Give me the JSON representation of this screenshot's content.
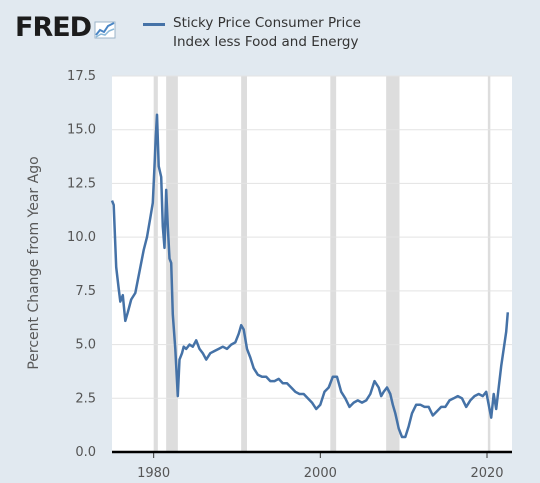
{
  "logo": {
    "text": "FRED",
    "icon": "chart-line-icon"
  },
  "legend": {
    "label_line1": "Sticky Price Consumer Price",
    "label_line2": "Index less Food and Energy",
    "color": "#4572a7"
  },
  "chart_data": {
    "type": "line",
    "title": "",
    "xlabel": "",
    "ylabel": "Percent Change from Year Ago",
    "xlim": [
      1975,
      2023
    ],
    "ylim": [
      0,
      17.5
    ],
    "yticks": [
      "0.0",
      "2.5",
      "5.0",
      "7.5",
      "10.0",
      "12.5",
      "15.0",
      "17.5"
    ],
    "xticks": [
      "1980",
      "2000",
      "2020"
    ],
    "grid": "horizontal",
    "recessions": [
      [
        1980.0,
        1980.5
      ],
      [
        1981.5,
        1982.9
      ],
      [
        1990.5,
        1991.2
      ],
      [
        2001.2,
        2001.9
      ],
      [
        2007.9,
        2009.5
      ],
      [
        2020.1,
        2020.4
      ]
    ],
    "series": [
      {
        "name": "Sticky Price Consumer Price Index less Food and Energy",
        "color": "#4572a7",
        "x": [
          1975.0,
          1975.2,
          1975.5,
          1975.8,
          1976.0,
          1976.3,
          1976.6,
          1976.9,
          1977.3,
          1977.8,
          1978.3,
          1978.8,
          1979.2,
          1979.6,
          1979.9,
          1980.1,
          1980.25,
          1980.4,
          1980.6,
          1980.9,
          1981.1,
          1981.3,
          1981.5,
          1981.7,
          1981.9,
          1982.1,
          1982.3,
          1982.6,
          1982.9,
          1983.1,
          1983.4,
          1983.6,
          1983.9,
          1984.3,
          1984.7,
          1985.1,
          1985.5,
          1985.9,
          1986.3,
          1986.8,
          1987.3,
          1987.8,
          1988.3,
          1988.8,
          1989.3,
          1989.8,
          1990.2,
          1990.5,
          1990.8,
          1991.2,
          1991.6,
          1992.0,
          1992.5,
          1993.0,
          1993.5,
          1994.0,
          1994.5,
          1995.0,
          1995.5,
          1996.0,
          1996.5,
          1997.0,
          1997.5,
          1998.0,
          1998.5,
          1999.0,
          1999.5,
          2000.0,
          2000.5,
          2001.0,
          2001.5,
          2002.0,
          2002.5,
          2003.0,
          2003.5,
          2004.0,
          2004.5,
          2005.0,
          2005.5,
          2006.0,
          2006.5,
          2007.0,
          2007.3,
          2007.6,
          2008.0,
          2008.4,
          2008.7,
          2009.0,
          2009.4,
          2009.8,
          2010.2,
          2010.6,
          2011.0,
          2011.5,
          2012.0,
          2012.5,
          2013.0,
          2013.5,
          2014.0,
          2014.5,
          2015.0,
          2015.5,
          2016.0,
          2016.5,
          2017.0,
          2017.5,
          2018.0,
          2018.5,
          2019.0,
          2019.5,
          2019.9,
          2020.2,
          2020.5,
          2020.8,
          2021.1,
          2021.4,
          2021.7,
          2022.0,
          2022.3,
          2022.5
        ],
        "y": [
          11.7,
          11.5,
          8.6,
          7.6,
          7.0,
          7.3,
          6.1,
          6.5,
          7.1,
          7.4,
          8.4,
          9.4,
          10.0,
          10.9,
          11.6,
          13.3,
          14.7,
          15.7,
          13.3,
          12.8,
          10.5,
          9.5,
          12.2,
          10.5,
          9.0,
          8.8,
          6.4,
          4.8,
          2.6,
          4.3,
          4.6,
          4.9,
          4.8,
          5.0,
          4.9,
          5.2,
          4.8,
          4.6,
          4.3,
          4.6,
          4.7,
          4.8,
          4.9,
          4.8,
          5.0,
          5.1,
          5.5,
          5.9,
          5.7,
          4.8,
          4.4,
          3.9,
          3.6,
          3.5,
          3.5,
          3.3,
          3.3,
          3.4,
          3.2,
          3.2,
          3.0,
          2.8,
          2.7,
          2.7,
          2.5,
          2.3,
          2.0,
          2.2,
          2.8,
          3.0,
          3.5,
          3.5,
          2.8,
          2.5,
          2.1,
          2.3,
          2.4,
          2.3,
          2.4,
          2.7,
          3.3,
          3.0,
          2.6,
          2.8,
          3.0,
          2.7,
          2.2,
          1.8,
          1.1,
          0.7,
          0.7,
          1.2,
          1.8,
          2.2,
          2.2,
          2.1,
          2.1,
          1.7,
          1.9,
          2.1,
          2.1,
          2.4,
          2.5,
          2.6,
          2.5,
          2.1,
          2.4,
          2.6,
          2.7,
          2.6,
          2.8,
          2.2,
          1.6,
          2.7,
          2.0,
          3.0,
          4.0,
          4.8,
          5.6,
          6.5
        ]
      }
    ]
  }
}
